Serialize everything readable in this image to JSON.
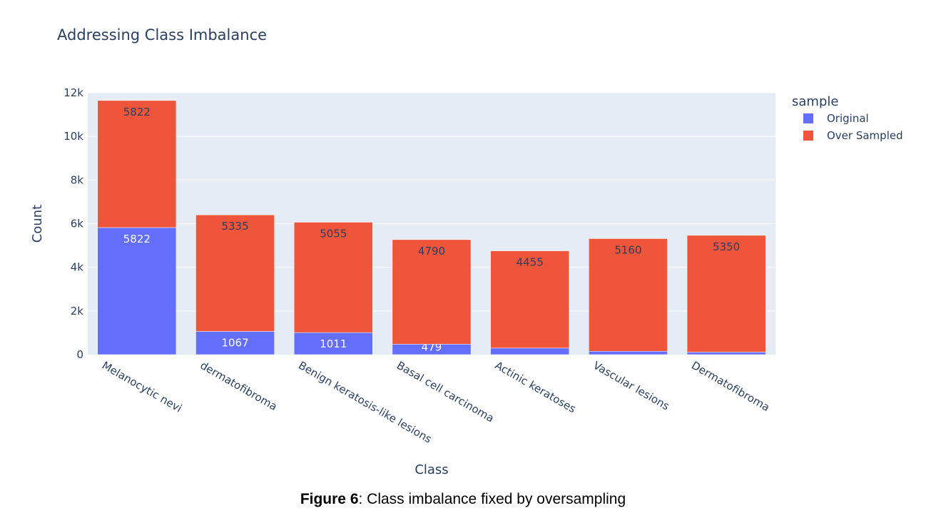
{
  "chart_data": {
    "type": "bar",
    "barmode": "stack",
    "title": "Addressing Class Imbalance",
    "xlabel": "Class",
    "ylabel": "Count",
    "ylim": [
      0,
      12000
    ],
    "yticks": [
      0,
      2000,
      4000,
      6000,
      8000,
      10000,
      12000
    ],
    "ytick_labels": [
      "0",
      "2k",
      "4k",
      "6k",
      "8k",
      "10k",
      "12k"
    ],
    "grid": true,
    "legend": {
      "title": "sample",
      "position": "top-right"
    },
    "categories": [
      "Melanocytic nevi",
      "dermatofibroma",
      "Benign keratosis-like lesions",
      "Basal cell carcinoma",
      "Actinic keratoses",
      "Vascular lesions",
      "Dermatofibroma"
    ],
    "series": [
      {
        "name": "Original",
        "color": "#636efa",
        "values": [
          5822,
          1067,
          1011,
          479,
          300,
          155,
          115
        ],
        "labels": [
          "5822",
          "1067",
          "1011",
          "479",
          "",
          "",
          ""
        ]
      },
      {
        "name": "Over Sampled",
        "color": "#ef553b",
        "values": [
          5822,
          5335,
          5055,
          4790,
          4455,
          5160,
          5350
        ],
        "labels": [
          "5822",
          "5335",
          "5055",
          "4790",
          "4455",
          "5160",
          "5350"
        ]
      }
    ]
  },
  "caption": {
    "label": "Figure 6",
    "text": ": Class imbalance fixed by oversampling"
  }
}
